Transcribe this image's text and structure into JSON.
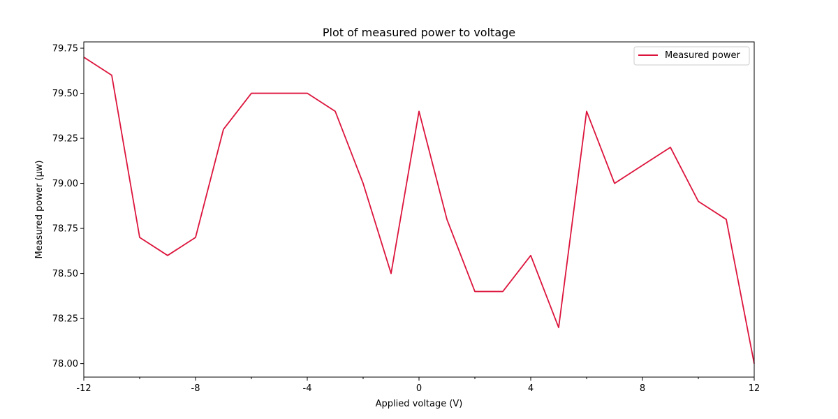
{
  "chart_data": {
    "type": "line",
    "title": "Plot of measured power to voltage",
    "xlabel": "Applied voltage (V)",
    "ylabel": "Measured power (µw)",
    "xlim": [
      -12,
      12
    ],
    "ylim": [
      77.925,
      79.785
    ],
    "x_major_ticks": [
      -12,
      -8,
      -4,
      0,
      4,
      8,
      12
    ],
    "x_minor_ticks": [
      -10,
      -6,
      -2,
      2,
      6,
      10
    ],
    "x_tick_labels": [
      "-12",
      "-8",
      "-4",
      "0",
      "4",
      "8",
      "12"
    ],
    "y_ticks": [
      78.0,
      78.25,
      78.5,
      78.75,
      79.0,
      79.25,
      79.5,
      79.75
    ],
    "y_tick_labels": [
      "78.00",
      "78.25",
      "78.50",
      "78.75",
      "79.00",
      "79.25",
      "79.50",
      "79.75"
    ],
    "grid": false,
    "legend_position": "upper-right",
    "series": [
      {
        "name": "Measured power",
        "color": "#dc143c",
        "x": [
          -12,
          -11,
          -10,
          -9,
          -8,
          -7,
          -6,
          -5,
          -4,
          -3,
          -2,
          -1,
          0,
          1,
          2,
          3,
          4,
          5,
          6,
          7,
          8,
          9,
          10,
          11,
          12
        ],
        "y": [
          79.7,
          79.6,
          78.7,
          78.6,
          78.7,
          79.3,
          79.5,
          79.5,
          79.5,
          79.4,
          79.0,
          78.5,
          79.4,
          78.8,
          78.4,
          78.4,
          78.6,
          78.2,
          79.4,
          79.0,
          79.1,
          79.2,
          78.9,
          78.8,
          78.0
        ]
      }
    ]
  }
}
